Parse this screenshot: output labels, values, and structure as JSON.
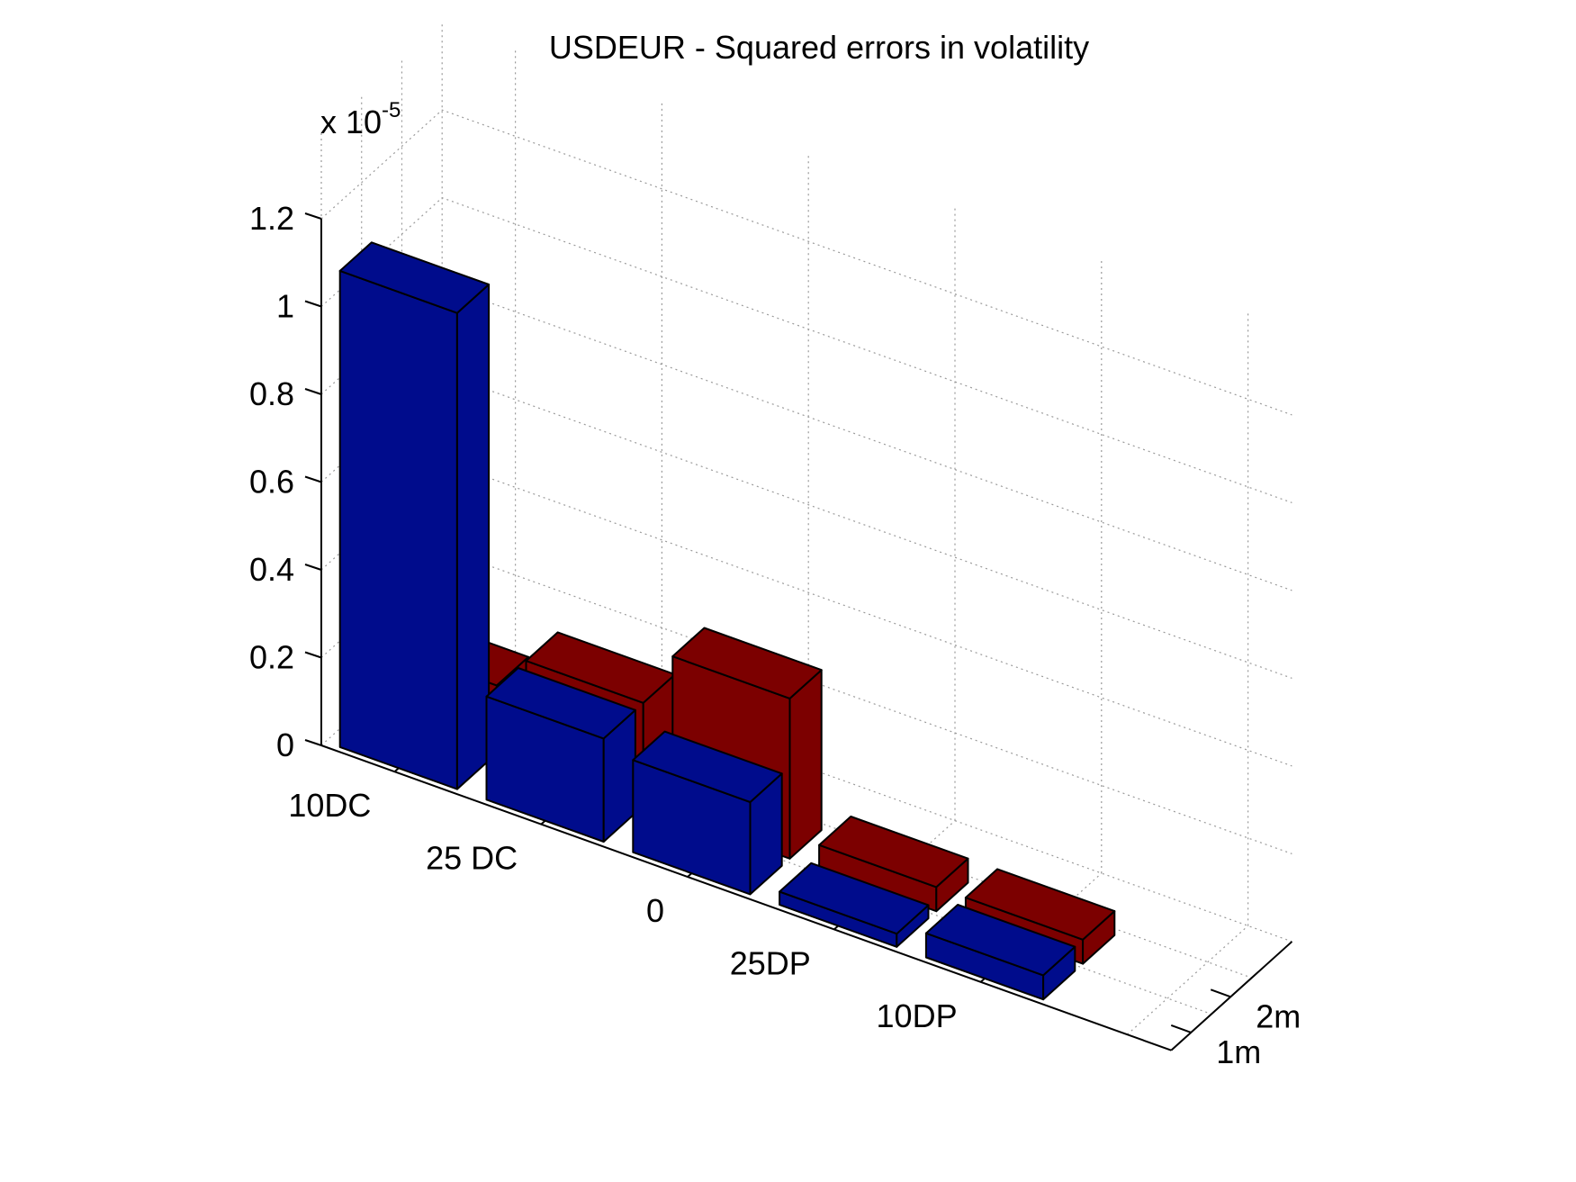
{
  "chart_data": {
    "type": "bar3d",
    "title": "USDEUR - Squared errors in volatility",
    "scale_exponent_label": "x 10",
    "scale_exponent_power": "-5",
    "categories": [
      "10DC",
      "25 DC",
      "0",
      "25DP",
      "10DP"
    ],
    "series": [
      {
        "name": "1m",
        "color": "#000c8c",
        "values": [
          1.085,
          0.235,
          0.21,
          0.03,
          0.055
        ]
      },
      {
        "name": "2m",
        "color": "#7c0000",
        "values": [
          0.155,
          0.235,
          0.365,
          0.055,
          0.055
        ]
      }
    ],
    "z_ticks": [
      "0",
      "0.2",
      "0.4",
      "0.6",
      "0.8",
      "1",
      "1.2"
    ],
    "z_tick_values": [
      0,
      0.2,
      0.4,
      0.6,
      0.8,
      1.0,
      1.2
    ],
    "zlim": [
      0,
      1.2
    ],
    "grid": true
  }
}
